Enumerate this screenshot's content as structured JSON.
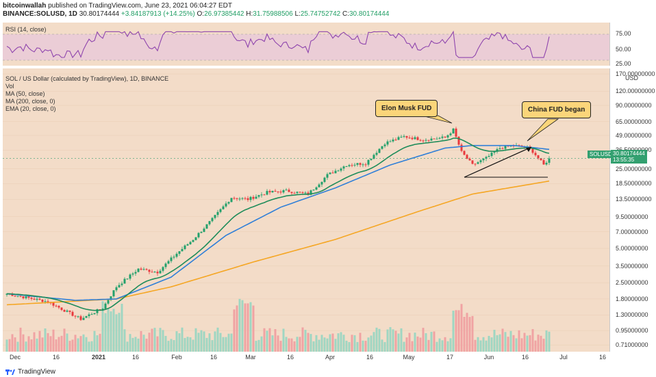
{
  "header": {
    "author": "bitcoinwallah",
    "published": "published on TradingView.com, June 23, 2021 06:04:27 EDT",
    "symbol": "BINANCE:SOLUSD, 1D",
    "close_value": "30.80174444",
    "change": "+3.84187913 (+14.25%)",
    "open_label": "O:",
    "open": "26.97385442",
    "high_label": "H:",
    "high": "31.75988506",
    "low_label": "L:",
    "low": "25.74752742",
    "close_label": "C:",
    "close": "30.80174444"
  },
  "rsi_panel": {
    "label": "RSI (14, close)",
    "ticks": [
      "75.00",
      "50.00",
      "25.00"
    ]
  },
  "main_panel": {
    "title": "SOL / US Dollar (calculated by TradingView), 1D, BINANCE",
    "indicators": [
      "Vol",
      "MA (50, close)",
      "MA (200, close, 0)",
      "EMA (20, close, 0)"
    ],
    "axis_currency": "USD",
    "price_label": "30.80174444",
    "countdown": "13:55:35",
    "symbol_tag": "SOLUSD"
  },
  "annotations": {
    "elon": "Elon Musk FUD",
    "china": "China FUD began"
  },
  "footer": {
    "brand": "TradingView"
  },
  "colors": {
    "up": "#22a06b",
    "down": "#e8383d",
    "ma50": "#2f7fd8",
    "ma200": "#f5a623",
    "ema20": "#1e8c5a",
    "rsi": "#8e44ad",
    "pane_bg": "#f3dcc8",
    "callout": "#fbd57a"
  },
  "chart_data": {
    "type": "candlestick",
    "scale": "log",
    "y_ticks": [
      "170.00000000",
      "120.00000000",
      "90.00000000",
      "65.00000000",
      "49.00000000",
      "36.50000000",
      "25.00000000",
      "18.50000000",
      "13.50000000",
      "9.50000000",
      "7.00000000",
      "5.00000000",
      "3.50000000",
      "2.50000000",
      "1.80000000",
      "1.30000000",
      "0.95000000",
      "0.71000000"
    ],
    "x_ticks": [
      "Dec",
      "16",
      "2021",
      "16",
      "Feb",
      "16",
      "Mar",
      "16",
      "Apr",
      "16",
      "May",
      "17",
      "Jun",
      "16",
      "Jul",
      "16"
    ],
    "ylim": [
      0.62,
      190
    ],
    "anchors": [
      {
        "d": 0,
        "p": 2.0
      },
      {
        "d": 15,
        "p": 1.7
      },
      {
        "d": 27,
        "p": 1.2
      },
      {
        "d": 35,
        "p": 1.5
      },
      {
        "d": 40,
        "p": 2.3
      },
      {
        "d": 48,
        "p": 3.3
      },
      {
        "d": 55,
        "p": 3.1
      },
      {
        "d": 62,
        "p": 4.5
      },
      {
        "d": 68,
        "p": 6.0
      },
      {
        "d": 75,
        "p": 9.0
      },
      {
        "d": 82,
        "p": 14.0
      },
      {
        "d": 88,
        "p": 13.5
      },
      {
        "d": 95,
        "p": 15.5
      },
      {
        "d": 102,
        "p": 16.0
      },
      {
        "d": 110,
        "p": 15.0
      },
      {
        "d": 117,
        "p": 22.0
      },
      {
        "d": 124,
        "p": 27.0
      },
      {
        "d": 131,
        "p": 28.0
      },
      {
        "d": 138,
        "p": 42.0
      },
      {
        "d": 145,
        "p": 48.0
      },
      {
        "d": 152,
        "p": 45.0
      },
      {
        "d": 160,
        "p": 47.0
      },
      {
        "d": 163,
        "p": 55.0
      },
      {
        "d": 166,
        "p": 35.0
      },
      {
        "d": 170,
        "p": 27.0
      },
      {
        "d": 175,
        "p": 31.0
      },
      {
        "d": 180,
        "p": 38.0
      },
      {
        "d": 185,
        "p": 40.0
      },
      {
        "d": 191,
        "p": 38.0
      },
      {
        "d": 196,
        "p": 27.0
      },
      {
        "d": 198,
        "p": 30.8
      }
    ],
    "ma200_anchors": [
      {
        "d": 0,
        "p": 1.6
      },
      {
        "d": 40,
        "p": 1.8
      },
      {
        "d": 60,
        "p": 2.3
      },
      {
        "d": 90,
        "p": 3.8
      },
      {
        "d": 120,
        "p": 6.0
      },
      {
        "d": 150,
        "p": 10.5
      },
      {
        "d": 170,
        "p": 15.0
      },
      {
        "d": 198,
        "p": 19.5
      }
    ],
    "ma50_anchors": [
      {
        "d": 0,
        "p": 2.0
      },
      {
        "d": 25,
        "p": 1.75
      },
      {
        "d": 40,
        "p": 1.8
      },
      {
        "d": 60,
        "p": 2.8
      },
      {
        "d": 80,
        "p": 6.5
      },
      {
        "d": 100,
        "p": 11.5
      },
      {
        "d": 120,
        "p": 17.0
      },
      {
        "d": 140,
        "p": 27.0
      },
      {
        "d": 160,
        "p": 38.0
      },
      {
        "d": 170,
        "p": 40.0
      },
      {
        "d": 185,
        "p": 40.0
      },
      {
        "d": 198,
        "p": 37.0
      }
    ]
  }
}
